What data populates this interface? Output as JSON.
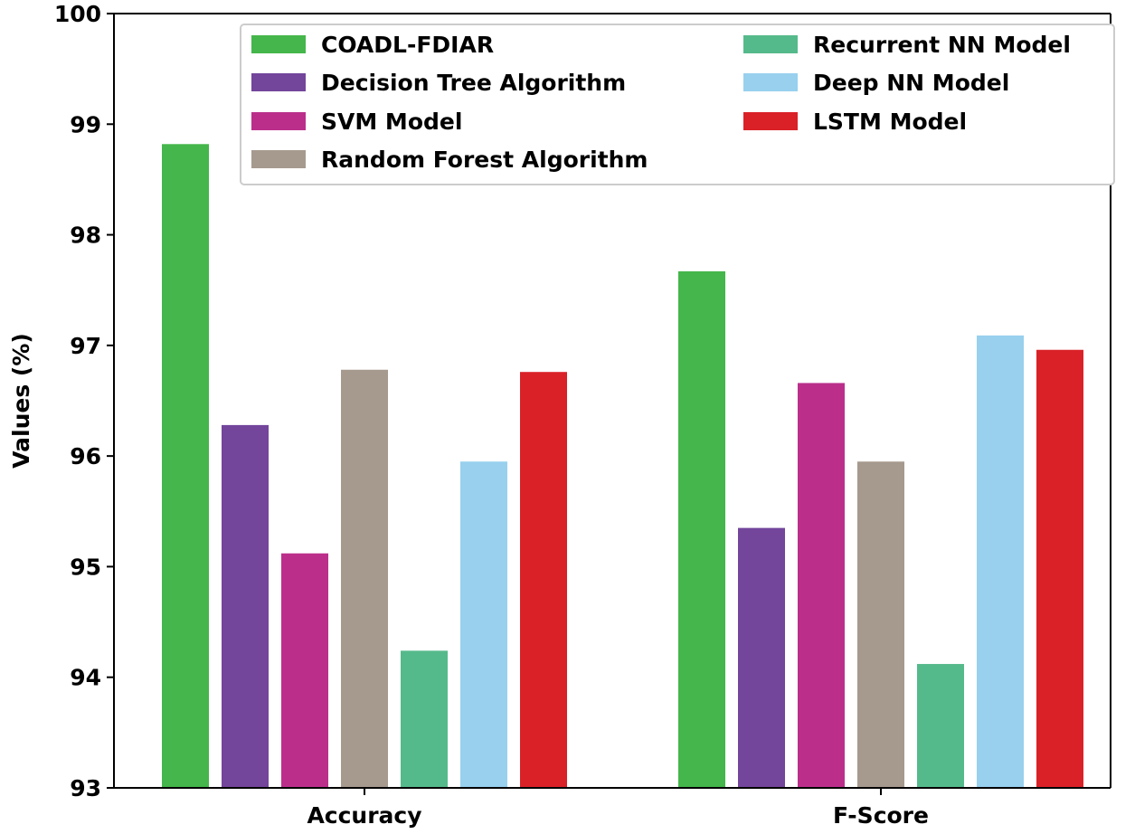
{
  "chart_data": {
    "type": "bar",
    "title": "",
    "xlabel": "",
    "ylabel": "Values (%)",
    "ylim": [
      93,
      100
    ],
    "yticks": [
      93,
      94,
      95,
      96,
      97,
      98,
      99,
      100
    ],
    "grid": false,
    "legend_position": "top",
    "legend_columns": 2,
    "categories": [
      "Accuracy",
      "F-Score"
    ],
    "series": [
      {
        "name": "COADL-FDIAR",
        "color": "#44b64b",
        "values": [
          98.82,
          97.67
        ]
      },
      {
        "name": "Decision Tree Algorithm",
        "color": "#73459b",
        "values": [
          96.28,
          95.35
        ]
      },
      {
        "name": "SVM Model",
        "color": "#bb2f8b",
        "values": [
          95.12,
          96.66
        ]
      },
      {
        "name": "Random Forest Algorithm",
        "color": "#a69a8e",
        "values": [
          96.78,
          95.95
        ]
      },
      {
        "name": "Recurrent NN Model",
        "color": "#55ba8b",
        "values": [
          94.24,
          94.12
        ]
      },
      {
        "name": "Deep NN Model",
        "color": "#98d0ee",
        "values": [
          95.95,
          97.09
        ]
      },
      {
        "name": "LSTM Model",
        "color": "#da2128",
        "values": [
          96.76,
          96.96
        ]
      }
    ]
  }
}
